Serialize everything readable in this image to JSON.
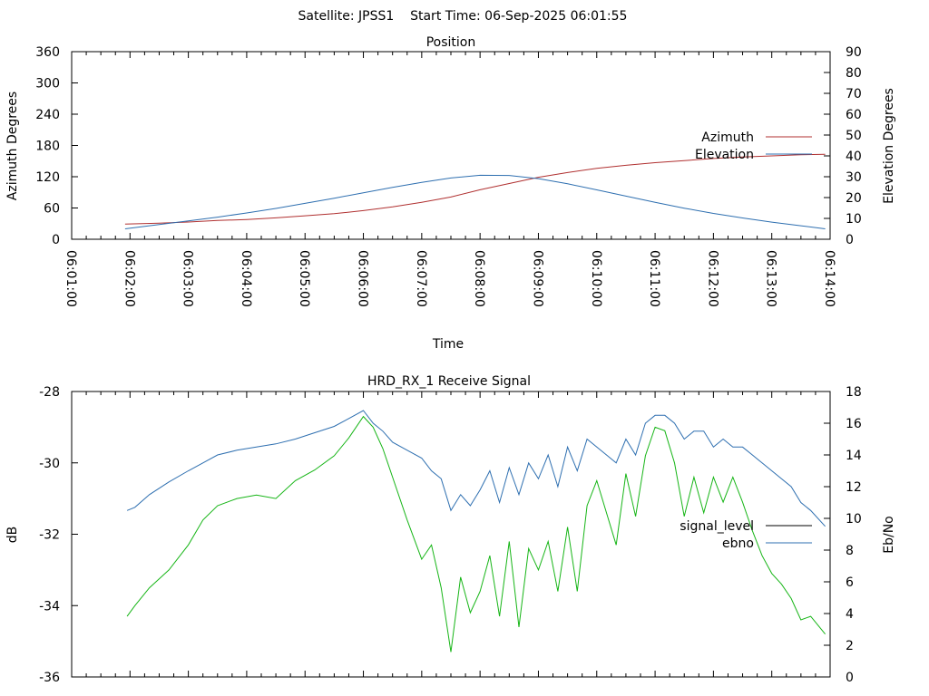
{
  "header": {
    "title": "Satellite: JPSS1    Start Time: 06-Sep-2025 06:01:55"
  },
  "colors": {
    "azimuth": "#b03030",
    "elevation": "#2e6fb0",
    "signal_level": "#000000",
    "signal_level_plotted": "#16b516",
    "ebno": "#2e6fb0"
  },
  "chart_data": [
    {
      "type": "line",
      "title": "Position",
      "xlabel": "Time",
      "ylabel": "Azimuth Degrees",
      "y2label": "Elevation Degrees",
      "xticks": [
        "06:01:00",
        "06:02:00",
        "06:03:00",
        "06:04:00",
        "06:05:00",
        "06:06:00",
        "06:07:00",
        "06:08:00",
        "06:09:00",
        "06:10:00",
        "06:11:00",
        "06:12:00",
        "06:13:00",
        "06:14:00"
      ],
      "xlim": [
        "06:01:00",
        "06:14:00"
      ],
      "ylim": [
        0,
        360
      ],
      "y2lim": [
        0,
        90
      ],
      "yticks": [
        0,
        60,
        120,
        180,
        240,
        300,
        360
      ],
      "y2ticks": [
        0,
        10,
        20,
        30,
        40,
        50,
        60,
        70,
        80,
        90
      ],
      "legend_position": "right",
      "grid": false,
      "series": [
        {
          "name": "Azimuth",
          "axis": "y",
          "x": [
            "06:01:55",
            "06:02:30",
            "06:03:00",
            "06:03:30",
            "06:04:00",
            "06:04:30",
            "06:05:00",
            "06:05:30",
            "06:06:00",
            "06:06:30",
            "06:07:00",
            "06:07:30",
            "06:08:00",
            "06:08:30",
            "06:09:00",
            "06:09:30",
            "06:10:00",
            "06:10:30",
            "06:11:00",
            "06:11:30",
            "06:12:00",
            "06:12:30",
            "06:13:00",
            "06:13:30",
            "06:13:55"
          ],
          "values": [
            29,
            31,
            33,
            36,
            38,
            41,
            45,
            49,
            55,
            62,
            71,
            81,
            95,
            107,
            119,
            128,
            136,
            142,
            147,
            151,
            155,
            158,
            160,
            162,
            163
          ]
        },
        {
          "name": "Elevation",
          "axis": "y2",
          "x": [
            "06:01:55",
            "06:02:30",
            "06:03:00",
            "06:03:30",
            "06:04:00",
            "06:04:30",
            "06:05:00",
            "06:05:30",
            "06:06:00",
            "06:06:30",
            "06:07:00",
            "06:07:30",
            "06:08:00",
            "06:08:30",
            "06:09:00",
            "06:09:30",
            "06:10:00",
            "06:10:30",
            "06:11:00",
            "06:11:30",
            "06:12:00",
            "06:12:30",
            "06:13:00",
            "06:13:30",
            "06:13:55"
          ],
          "values": [
            5,
            7.1,
            8.8,
            10.6,
            12.6,
            14.8,
            17.2,
            19.7,
            22.3,
            24.9,
            27.3,
            29.4,
            30.7,
            30.6,
            29.1,
            26.6,
            23.7,
            20.7,
            17.7,
            14.9,
            12.4,
            10.2,
            8.2,
            6.5,
            5
          ]
        }
      ]
    },
    {
      "type": "line",
      "title": "HRD_RX_1 Receive Signal",
      "ylabel": "dB",
      "y2label": "Eb/No",
      "ylim": [
        -36,
        -28
      ],
      "y2lim": [
        0,
        18
      ],
      "yticks": [
        -36,
        -34,
        -32,
        -30,
        -28
      ],
      "y2ticks": [
        0,
        2,
        4,
        6,
        8,
        10,
        12,
        14,
        16,
        18
      ],
      "xlim": [
        "06:01:00",
        "06:14:00"
      ],
      "legend_position": "right",
      "grid": false,
      "series": [
        {
          "name": "signal_level",
          "axis": "y",
          "x": [
            "06:01:57",
            "06:02:05",
            "06:02:20",
            "06:02:40",
            "06:03:00",
            "06:03:15",
            "06:03:30",
            "06:03:50",
            "06:04:10",
            "06:04:30",
            "06:04:50",
            "06:05:10",
            "06:05:30",
            "06:05:45",
            "06:06:00",
            "06:06:10",
            "06:06:20",
            "06:06:30",
            "06:06:45",
            "06:07:00",
            "06:07:10",
            "06:07:20",
            "06:07:30",
            "06:07:40",
            "06:07:50",
            "06:08:00",
            "06:08:10",
            "06:08:20",
            "06:08:30",
            "06:08:40",
            "06:08:50",
            "06:09:00",
            "06:09:10",
            "06:09:20",
            "06:09:30",
            "06:09:40",
            "06:09:50",
            "06:10:00",
            "06:10:10",
            "06:10:20",
            "06:10:30",
            "06:10:40",
            "06:10:50",
            "06:11:00",
            "06:11:10",
            "06:11:20",
            "06:11:30",
            "06:11:40",
            "06:11:50",
            "06:12:00",
            "06:12:10",
            "06:12:20",
            "06:12:30",
            "06:12:40",
            "06:12:50",
            "06:13:00",
            "06:13:10",
            "06:13:20",
            "06:13:30",
            "06:13:40",
            "06:13:55"
          ],
          "values": [
            -34.3,
            -34.0,
            -33.5,
            -33.0,
            -32.3,
            -31.6,
            -31.2,
            -31.0,
            -30.9,
            -31.0,
            -30.5,
            -30.2,
            -29.8,
            -29.3,
            -28.7,
            -29.0,
            -29.6,
            -30.4,
            -31.6,
            -32.7,
            -32.3,
            -33.5,
            -35.3,
            -33.2,
            -34.2,
            -33.6,
            -32.6,
            -34.3,
            -32.2,
            -34.6,
            -32.4,
            -33.0,
            -32.2,
            -33.6,
            -31.8,
            -33.6,
            -31.2,
            -30.5,
            -31.4,
            -32.3,
            -30.3,
            -31.5,
            -29.8,
            -29.0,
            -29.1,
            -30.0,
            -31.5,
            -30.4,
            -31.4,
            -30.4,
            -31.1,
            -30.4,
            -31.1,
            -31.9,
            -32.6,
            -33.1,
            -33.4,
            -33.8,
            -34.4,
            -34.3,
            -34.8
          ]
        },
        {
          "name": "ebno",
          "axis": "y2",
          "x": [
            "06:01:57",
            "06:02:05",
            "06:02:20",
            "06:02:40",
            "06:03:00",
            "06:03:15",
            "06:03:30",
            "06:03:50",
            "06:04:10",
            "06:04:30",
            "06:04:50",
            "06:05:10",
            "06:05:30",
            "06:05:45",
            "06:06:00",
            "06:06:10",
            "06:06:20",
            "06:06:30",
            "06:06:45",
            "06:07:00",
            "06:07:10",
            "06:07:20",
            "06:07:30",
            "06:07:40",
            "06:07:50",
            "06:08:00",
            "06:08:10",
            "06:08:20",
            "06:08:30",
            "06:08:40",
            "06:08:50",
            "06:09:00",
            "06:09:10",
            "06:09:20",
            "06:09:30",
            "06:09:40",
            "06:09:50",
            "06:10:00",
            "06:10:10",
            "06:10:20",
            "06:10:30",
            "06:10:40",
            "06:10:50",
            "06:11:00",
            "06:11:10",
            "06:11:20",
            "06:11:30",
            "06:11:40",
            "06:11:50",
            "06:12:00",
            "06:12:10",
            "06:12:20",
            "06:12:30",
            "06:12:40",
            "06:12:50",
            "06:13:00",
            "06:13:10",
            "06:13:20",
            "06:13:30",
            "06:13:40",
            "06:13:55"
          ],
          "values": [
            10.5,
            10.7,
            11.5,
            12.3,
            13.0,
            13.5,
            14.0,
            14.3,
            14.5,
            14.7,
            15.0,
            15.4,
            15.8,
            16.3,
            16.8,
            16.0,
            15.5,
            14.8,
            14.3,
            13.8,
            13.0,
            12.5,
            10.5,
            11.5,
            10.8,
            11.8,
            13.0,
            11.0,
            13.2,
            11.5,
            13.5,
            12.5,
            14.0,
            12.0,
            14.5,
            13.0,
            15.0,
            14.5,
            14.0,
            13.5,
            15.0,
            14.0,
            16.0,
            16.5,
            16.5,
            16.0,
            15.0,
            15.5,
            15.5,
            14.5,
            15.0,
            14.5,
            14.5,
            14.0,
            13.5,
            13.0,
            12.5,
            12.0,
            11.0,
            10.5,
            9.5
          ]
        }
      ]
    }
  ]
}
